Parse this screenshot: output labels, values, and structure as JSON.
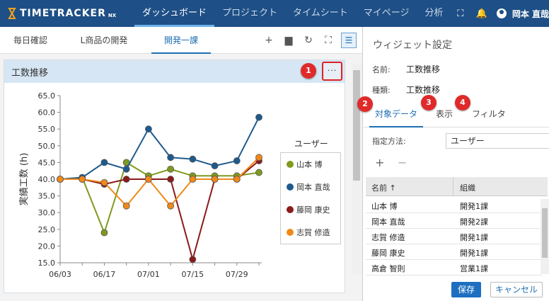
{
  "header": {
    "logo_text": "TIMETRACKER",
    "logo_suffix": "NX",
    "nav": [
      "ダッシュボード",
      "プロジェクト",
      "タイムシート",
      "マイページ",
      "分析"
    ],
    "active_nav": 0,
    "user_name": "岡本 直哉",
    "icons": [
      "fullscreen-icon",
      "bell-icon",
      "user-avatar-icon"
    ]
  },
  "tabs": {
    "items": [
      "毎日確認",
      "L商品の開発",
      "開発一課"
    ],
    "active": 2,
    "tools": [
      "plus-icon",
      "folder-icon",
      "refresh-icon",
      "fullscreen-icon",
      "list-icon"
    ]
  },
  "widget": {
    "title": "工数推移",
    "menu_label": "···",
    "badge1": "1"
  },
  "chart_data": {
    "type": "line",
    "ylabel": "実績工数 (h)",
    "xlabel": "",
    "ylim": [
      15,
      65
    ],
    "yticks": [
      15.0,
      20.0,
      25.0,
      30.0,
      35.0,
      40.0,
      45.0,
      50.0,
      55.0,
      60.0,
      65.0
    ],
    "x": [
      "06/03",
      "06/10",
      "06/17",
      "06/24",
      "07/01",
      "07/08",
      "07/15",
      "07/22",
      "07/29",
      "08/05"
    ],
    "xtick_labels": [
      "06/03",
      "06/17",
      "07/01",
      "07/15",
      "07/29"
    ],
    "legend_title": "ユーザー",
    "series": [
      {
        "name": "山本 博",
        "color": "#7f9a1e",
        "values": [
          40,
          40.5,
          24,
          45,
          41,
          43,
          41,
          41,
          41,
          42
        ]
      },
      {
        "name": "岡本 直哉",
        "color": "#1d5a8e",
        "values": [
          40,
          40.5,
          45,
          43,
          55,
          46.5,
          46,
          44,
          45.5,
          58.5
        ]
      },
      {
        "name": "藤岡 康史",
        "color": "#8b1a1a",
        "values": [
          40,
          40,
          38.5,
          40,
          40,
          40,
          16,
          40,
          40,
          45.5
        ]
      },
      {
        "name": "志賀 修造",
        "color": "#f0891a",
        "values": [
          40,
          40,
          39,
          32,
          40,
          32,
          40,
          40,
          40,
          46.5
        ]
      }
    ]
  },
  "settings": {
    "title": "ウィジェット設定",
    "name_label": "名前:",
    "name_value": "工数推移",
    "type_label": "種類:",
    "type_value": "工数推移",
    "tabs": [
      "対象データ",
      "表示",
      "フィルタ"
    ],
    "badges": [
      "2",
      "3",
      "4"
    ],
    "method_label": "指定方法:",
    "method_value": "ユーザー",
    "plus": "+",
    "minus": "−",
    "grid": {
      "headers": [
        "名前 ↑",
        "組織"
      ],
      "rows": [
        [
          "山本 博",
          "開発1課"
        ],
        [
          "岡本 直哉",
          "開発2課"
        ],
        [
          "志賀 修造",
          "開発1課"
        ],
        [
          "藤岡 康史",
          "開発1課"
        ],
        [
          "高倉 智則",
          "営業1課"
        ]
      ]
    },
    "save": "保存",
    "cancel": "キャンセル"
  }
}
